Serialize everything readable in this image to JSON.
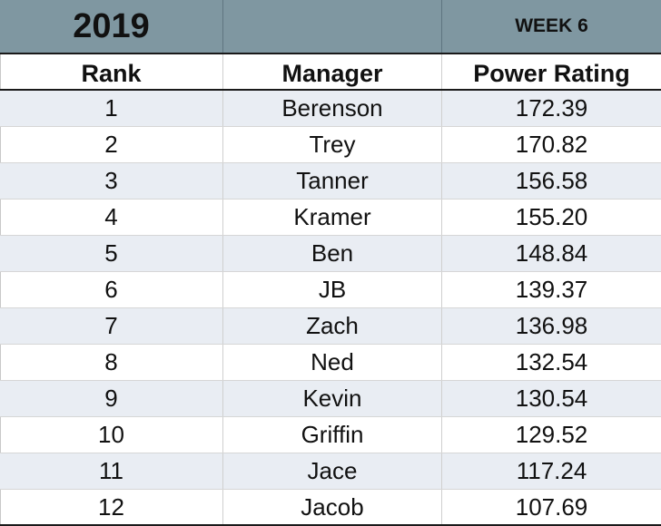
{
  "title": {
    "year": "2019",
    "middle": "",
    "week": "WEEK 6"
  },
  "headers": {
    "rank": "Rank",
    "manager": "Manager",
    "rating": "Power Rating"
  },
  "rows": [
    {
      "rank": "1",
      "manager": "Berenson",
      "rating": "172.39"
    },
    {
      "rank": "2",
      "manager": "Trey",
      "rating": "170.82"
    },
    {
      "rank": "3",
      "manager": "Tanner",
      "rating": "156.58"
    },
    {
      "rank": "4",
      "manager": "Kramer",
      "rating": "155.20"
    },
    {
      "rank": "5",
      "manager": "Ben",
      "rating": "148.84"
    },
    {
      "rank": "6",
      "manager": "JB",
      "rating": "139.37"
    },
    {
      "rank": "7",
      "manager": "Zach",
      "rating": "136.98"
    },
    {
      "rank": "8",
      "manager": "Ned",
      "rating": "132.54"
    },
    {
      "rank": "9",
      "manager": "Kevin",
      "rating": "130.54"
    },
    {
      "rank": "10",
      "manager": "Griffin",
      "rating": "129.52"
    },
    {
      "rank": "11",
      "manager": "Jace",
      "rating": "117.24"
    },
    {
      "rank": "12",
      "manager": "Jacob",
      "rating": "107.69"
    }
  ],
  "colors": {
    "title_band": "#7f97a1",
    "row_band": "#e9edf3",
    "border_dark": "#1a1a1a"
  }
}
